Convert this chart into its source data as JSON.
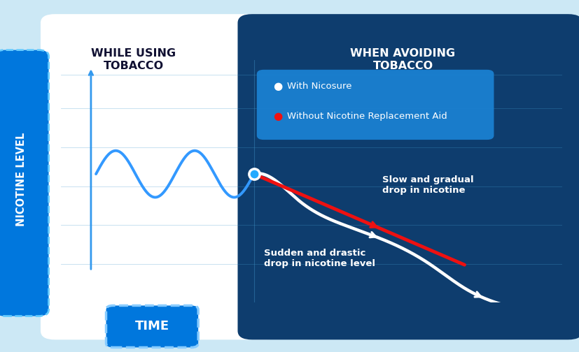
{
  "outer_bg": "#cce8f5",
  "white_panel_color": "#ffffff",
  "dark_blue_bg": "#0e3d6e",
  "legend_box_color_top": "#1a7fd4",
  "legend_box_color_bot": "#1565a0",
  "axis_color": "#3399ee",
  "wave_color": "#3399ff",
  "white_line_color": "#ffffff",
  "red_line_color": "#ee1111",
  "y_label_bg_top": "#00aaff",
  "y_label_bg_bot": "#0055cc",
  "left_label": "WHILE USING\nTOBACCO",
  "right_label": "WHEN AVOIDING\nTOBACCO",
  "y_axis_label": "NICOTINE LEVEL",
  "x_axis_label": "TIME",
  "legend_nicosure": "With Nicosure",
  "legend_without": "Without Nicotine Replacement Aid",
  "annotation_slow": "Slow and gradual\ndrop in nicotine",
  "annotation_sudden": "Sudden and drastic\ndrop in nicotine level",
  "grid_color": "#4499cc",
  "divider_blue": "#4499cc"
}
